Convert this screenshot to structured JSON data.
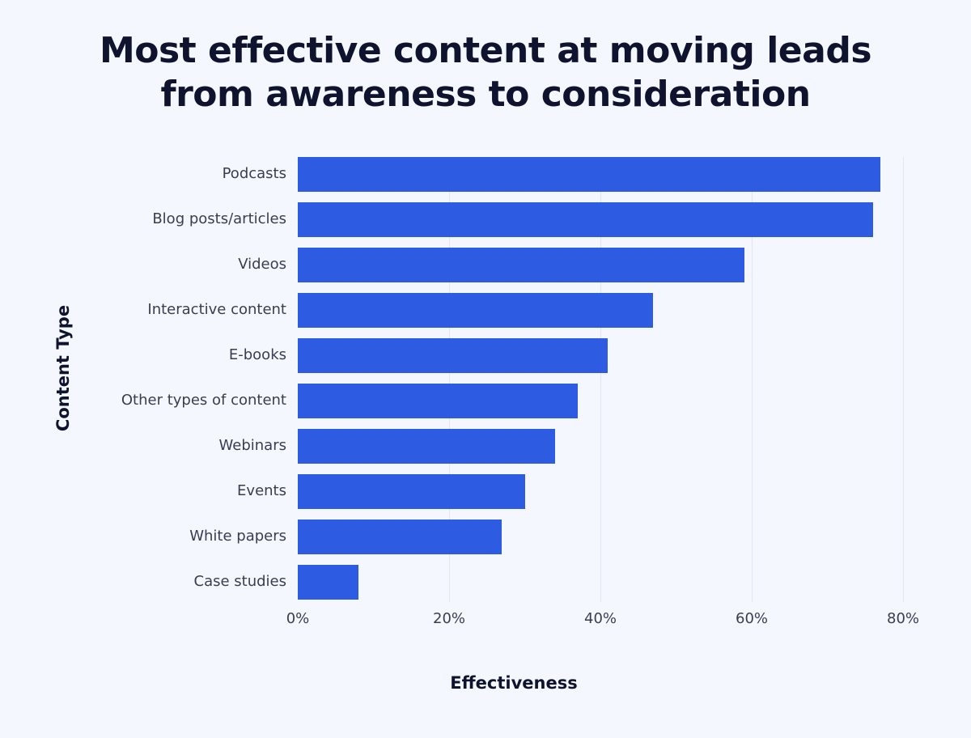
{
  "chart_data": {
    "type": "bar",
    "orientation": "horizontal",
    "title": "Most effective content at moving leads from awareness to consideration",
    "title_lines": [
      "Most effective content at moving leads",
      "from awareness to consideration"
    ],
    "xlabel": "Effectiveness",
    "ylabel": "Content Type",
    "categories": [
      "Podcasts",
      "Blog posts/articles",
      "Videos",
      "Interactive content",
      "E-books",
      "Other types of content",
      "Webinars",
      "Events",
      "White papers",
      "Case studies"
    ],
    "values": [
      77,
      76,
      59,
      47,
      41,
      37,
      34,
      30,
      27,
      8
    ],
    "unit": "%",
    "xlim": [
      0,
      80
    ],
    "xticks": [
      "0%",
      "20%",
      "40%",
      "60%",
      "80%"
    ],
    "grid": true,
    "legend": null,
    "bar_color": "#2d5ce2"
  }
}
